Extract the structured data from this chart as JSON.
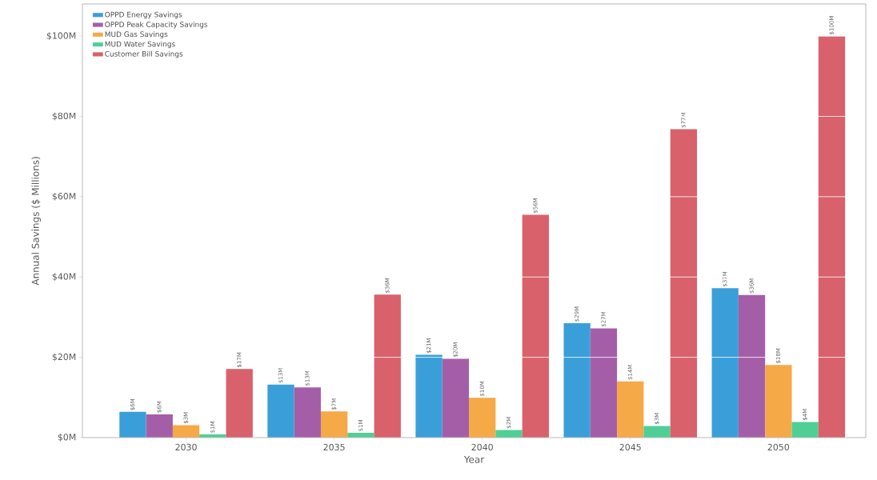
{
  "chart_data": {
    "type": "bar",
    "xlabel": "Year",
    "ylabel": "Annual Savings ($ Millions)",
    "categories": [
      "2030",
      "2035",
      "2040",
      "2045",
      "2050"
    ],
    "series": [
      {
        "name": "OPPD Energy Savings",
        "color": "#3a9fd8",
        "values": [
          6.4,
          13.2,
          20.6,
          28.5,
          37.2
        ],
        "value_labels": [
          "$6M",
          "$13M",
          "$21M",
          "$29M",
          "$37M"
        ]
      },
      {
        "name": "OPPD Peak Capacity Savings",
        "color": "#a45ea8",
        "values": [
          5.8,
          12.5,
          19.6,
          27.2,
          35.5
        ],
        "value_labels": [
          "$6M",
          "$13M",
          "$20M",
          "$27M",
          "$36M"
        ]
      },
      {
        "name": "MUD Gas Savings",
        "color": "#f5a947",
        "values": [
          3.1,
          6.5,
          9.9,
          14.0,
          18.1
        ],
        "value_labels": [
          "$3M",
          "$7M",
          "$10M",
          "$14M",
          "$18M"
        ]
      },
      {
        "name": "MUD Water Savings",
        "color": "#4fcf96",
        "values": [
          0.8,
          1.2,
          1.9,
          2.9,
          3.9
        ],
        "value_labels": [
          "$1M",
          "$1M",
          "$2M",
          "$3M",
          "$4M"
        ]
      },
      {
        "name": "Customer Bill Savings",
        "color": "#d9616b",
        "values": [
          17.1,
          35.6,
          55.5,
          76.8,
          100
        ],
        "value_labels": [
          "$17M",
          "$36M",
          "$56M",
          "$77M",
          "$100M"
        ]
      }
    ],
    "ylim": [
      0,
      108
    ],
    "yticks": [
      {
        "value": 0,
        "label": "$0M"
      },
      {
        "value": 20,
        "label": "$20M"
      },
      {
        "value": 40,
        "label": "$40M"
      },
      {
        "value": 60,
        "label": "$60M"
      },
      {
        "value": 80,
        "label": "$80M"
      },
      {
        "value": 100,
        "label": "$100M"
      }
    ],
    "grid": "y",
    "legend": "top left"
  }
}
